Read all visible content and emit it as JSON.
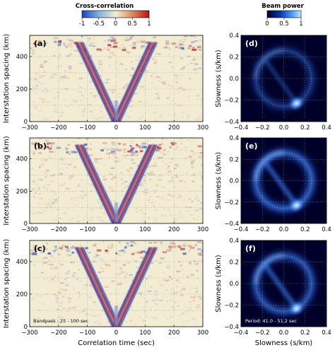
{
  "colors": {
    "cc_negative": "#1f3fbf",
    "cc_zero": "#f2ecd2",
    "cc_positive": "#b5121b",
    "beam_low": "#00002a",
    "beam_high": "#cfe6ff"
  },
  "chart_data": [
    {
      "type": "colorbar",
      "title": "Cross-correlation",
      "ticks": [
        "-1",
        "-0.5",
        "0",
        "0.5",
        "1"
      ],
      "range": [
        -1,
        1
      ],
      "colormap": "blue-white-red"
    },
    {
      "type": "colorbar",
      "title": "Beam power",
      "ticks": [
        "0",
        "0.5",
        "1"
      ],
      "range": [
        0,
        1
      ],
      "colormap": "dark-blue-to-white"
    },
    {
      "type": "heatmap",
      "panel": "(a)",
      "xlabel": "",
      "ylabel": "Interstation spacing (km)",
      "xlim": [
        -300,
        300
      ],
      "ylim": [
        0,
        530
      ],
      "xticks": [
        "−300",
        "−200",
        "−100",
        "0",
        "100",
        "200",
        "300"
      ],
      "yticks": [
        "0",
        "200",
        "400"
      ],
      "moveout_velocity_km_s": 3.8,
      "annotation": ""
    },
    {
      "type": "heatmap",
      "panel": "(b)",
      "xlabel": "",
      "ylabel": "Interstation spacing (km)",
      "xlim": [
        -300,
        300
      ],
      "ylim": [
        0,
        530
      ],
      "xticks": [
        "−300",
        "−200",
        "−100",
        "0",
        "100",
        "200",
        "300"
      ],
      "yticks": [
        "0",
        "200",
        "400"
      ],
      "moveout_velocity_km_s": 3.8,
      "annotation": ""
    },
    {
      "type": "heatmap",
      "panel": "(c)",
      "xlabel": "Correlation time (sec)",
      "ylabel": "Interstation spacing (km)",
      "xlim": [
        -300,
        300
      ],
      "ylim": [
        0,
        530
      ],
      "xticks": [
        "−300",
        "−200",
        "−100",
        "0",
        "100",
        "200",
        "300"
      ],
      "yticks": [
        "0",
        "200",
        "400"
      ],
      "moveout_velocity_km_s": 3.8,
      "annotation": "Bandpass : 25 - 100 sec"
    },
    {
      "type": "heatmap",
      "panel": "(d)",
      "xlabel": "",
      "ylabel": "Slowness (s/km)",
      "xlim": [
        -0.4,
        0.4
      ],
      "ylim": [
        -0.4,
        0.4
      ],
      "xticks": [
        "−0.4",
        "−0.2",
        "0.0",
        "0.2",
        "0.4"
      ],
      "yticks": [
        "−0.4",
        "−0.2",
        "0.0",
        "0.2",
        "0.4"
      ],
      "ring_radius_s_km": 0.26,
      "peak": {
        "sx": 0.12,
        "sy": -0.23
      },
      "annotation": ""
    },
    {
      "type": "heatmap",
      "panel": "(e)",
      "xlabel": "",
      "ylabel": "Slowness (s/km)",
      "xlim": [
        -0.4,
        0.4
      ],
      "ylim": [
        -0.4,
        0.4
      ],
      "xticks": [
        "−0.4",
        "−0.2",
        "0.0",
        "0.2",
        "0.4"
      ],
      "yticks": [
        "−0.4",
        "−0.2",
        "0.0",
        "0.2",
        "0.4"
      ],
      "ring_radius_s_km": 0.26,
      "peak": {
        "sx": 0.12,
        "sy": -0.23
      },
      "annotation": ""
    },
    {
      "type": "heatmap",
      "panel": "(f)",
      "xlabel": "Slowness (s/km)",
      "ylabel": "Slowness (s/km)",
      "xlim": [
        -0.4,
        0.4
      ],
      "ylim": [
        -0.4,
        0.4
      ],
      "xticks": [
        "−0.4",
        "−0.2",
        "0.0",
        "0.2",
        "0.4"
      ],
      "yticks": [
        "−0.4",
        "−0.2",
        "0.0",
        "0.2",
        "0.4"
      ],
      "ring_radius_s_km": 0.26,
      "peak": {
        "sx": 0.12,
        "sy": -0.23
      },
      "annotation": "Period: 41.0 - 51.2 sec"
    }
  ]
}
